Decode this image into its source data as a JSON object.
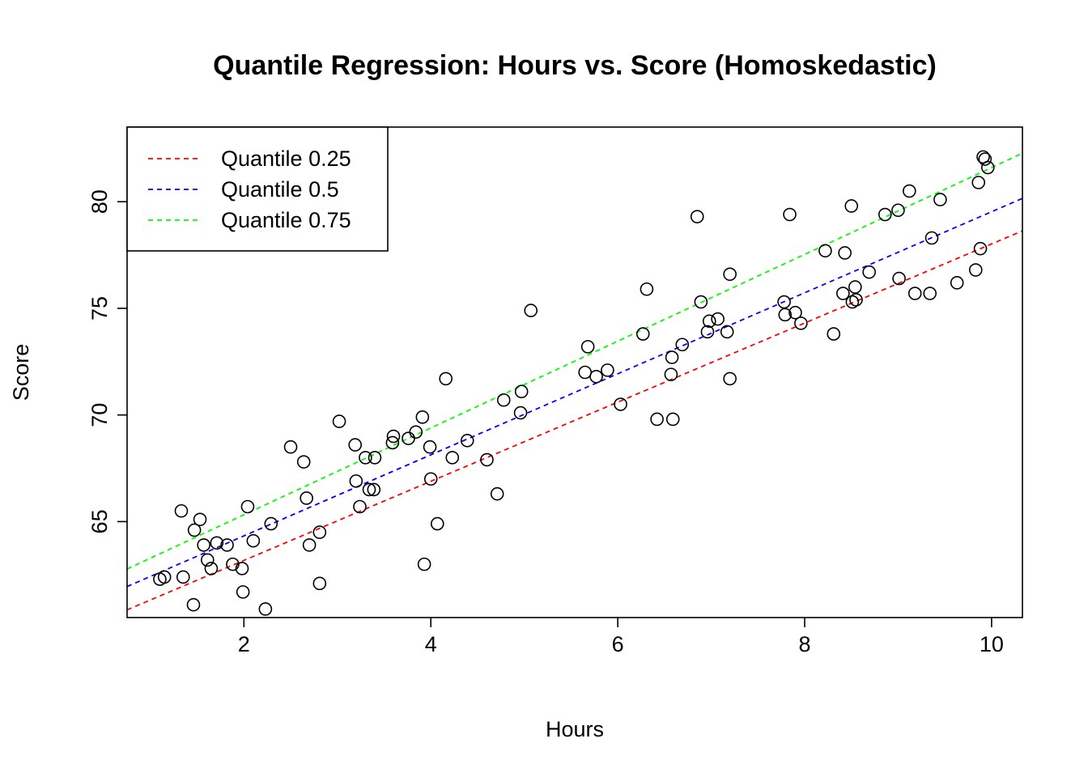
{
  "chart_data": {
    "type": "scatter",
    "title": "Quantile Regression: Hours vs. Score (Homoskedastic)",
    "xlabel": "Hours",
    "ylabel": "Score",
    "xlim": [
      0.75,
      10.33
    ],
    "ylim": [
      60.5,
      83.5
    ],
    "x_ticks": [
      2,
      4,
      6,
      8,
      10
    ],
    "y_ticks": [
      65,
      70,
      75,
      80
    ],
    "grid": false,
    "legend_position": "top-left",
    "points": {
      "x": [
        1.1,
        1.15,
        1.35,
        1.33,
        1.46,
        1.47,
        1.53,
        1.57,
        1.61,
        1.65,
        1.71,
        1.82,
        1.88,
        1.98,
        1.99,
        2.04,
        2.1,
        2.23,
        2.29,
        2.5,
        2.64,
        2.67,
        2.7,
        2.81,
        2.81,
        3.02,
        3.19,
        3.2,
        3.24,
        3.3,
        3.34,
        3.39,
        3.4,
        3.59,
        3.6,
        3.76,
        3.84,
        3.91,
        3.93,
        3.99,
        4.0,
        4.07,
        4.16,
        4.23,
        4.39,
        4.6,
        4.71,
        4.78,
        4.96,
        4.97,
        5.07,
        5.65,
        5.68,
        5.77,
        5.89,
        6.03,
        6.27,
        6.31,
        6.42,
        6.57,
        6.58,
        6.59,
        6.69,
        6.85,
        6.89,
        6.96,
        6.98,
        7.07,
        7.17,
        7.2,
        7.2,
        7.78,
        7.79,
        7.84,
        7.9,
        7.96,
        8.22,
        8.31,
        8.41,
        8.43,
        8.5,
        8.51,
        8.54,
        8.55,
        8.69,
        8.86,
        9.0,
        9.01,
        9.12,
        9.18,
        9.34,
        9.36,
        9.45,
        9.63,
        9.83,
        9.86,
        9.88,
        9.91,
        9.93,
        9.96
      ],
      "y": [
        62.3,
        62.4,
        62.4,
        65.5,
        61.1,
        64.6,
        65.1,
        63.9,
        63.2,
        62.8,
        64.0,
        63.9,
        63.0,
        62.8,
        61.7,
        65.7,
        64.1,
        60.9,
        64.9,
        68.5,
        67.8,
        66.1,
        63.9,
        62.1,
        64.5,
        69.7,
        68.6,
        66.9,
        65.7,
        68.0,
        66.5,
        66.5,
        68.0,
        68.7,
        69.0,
        68.9,
        69.2,
        69.9,
        63.0,
        68.5,
        67.0,
        64.9,
        71.7,
        68.0,
        68.8,
        67.9,
        66.3,
        70.7,
        70.1,
        71.1,
        74.9,
        72.0,
        73.2,
        71.8,
        72.1,
        70.5,
        73.8,
        75.9,
        69.8,
        71.9,
        72.7,
        69.8,
        73.3,
        79.3,
        75.3,
        73.9,
        74.4,
        74.5,
        73.9,
        71.7,
        76.6,
        75.3,
        74.7,
        79.4,
        74.8,
        74.3,
        77.7,
        73.8,
        75.7,
        77.6,
        79.8,
        75.3,
        76.0,
        75.4,
        76.7,
        79.4,
        79.6,
        76.4,
        80.5,
        75.7,
        75.7,
        78.3,
        80.1,
        76.2,
        76.8,
        80.9,
        77.8,
        82.1,
        82.0,
        81.6
      ]
    },
    "series": [
      {
        "name": "Quantile 0.25",
        "type": "line",
        "style": "dashed",
        "color": "#ff0000",
        "intercept": 59.47,
        "slope": 1.855
      },
      {
        "name": "Quantile 0.5",
        "type": "line",
        "style": "dashed",
        "color": "#0000ff",
        "intercept": 60.53,
        "slope": 1.9
      },
      {
        "name": "Quantile 0.75",
        "type": "line",
        "style": "dashed",
        "color": "#00ff00",
        "intercept": 61.25,
        "slope": 2.035
      }
    ],
    "legend": [
      "Quantile 0.25",
      "Quantile 0.5",
      "Quantile 0.75"
    ]
  }
}
